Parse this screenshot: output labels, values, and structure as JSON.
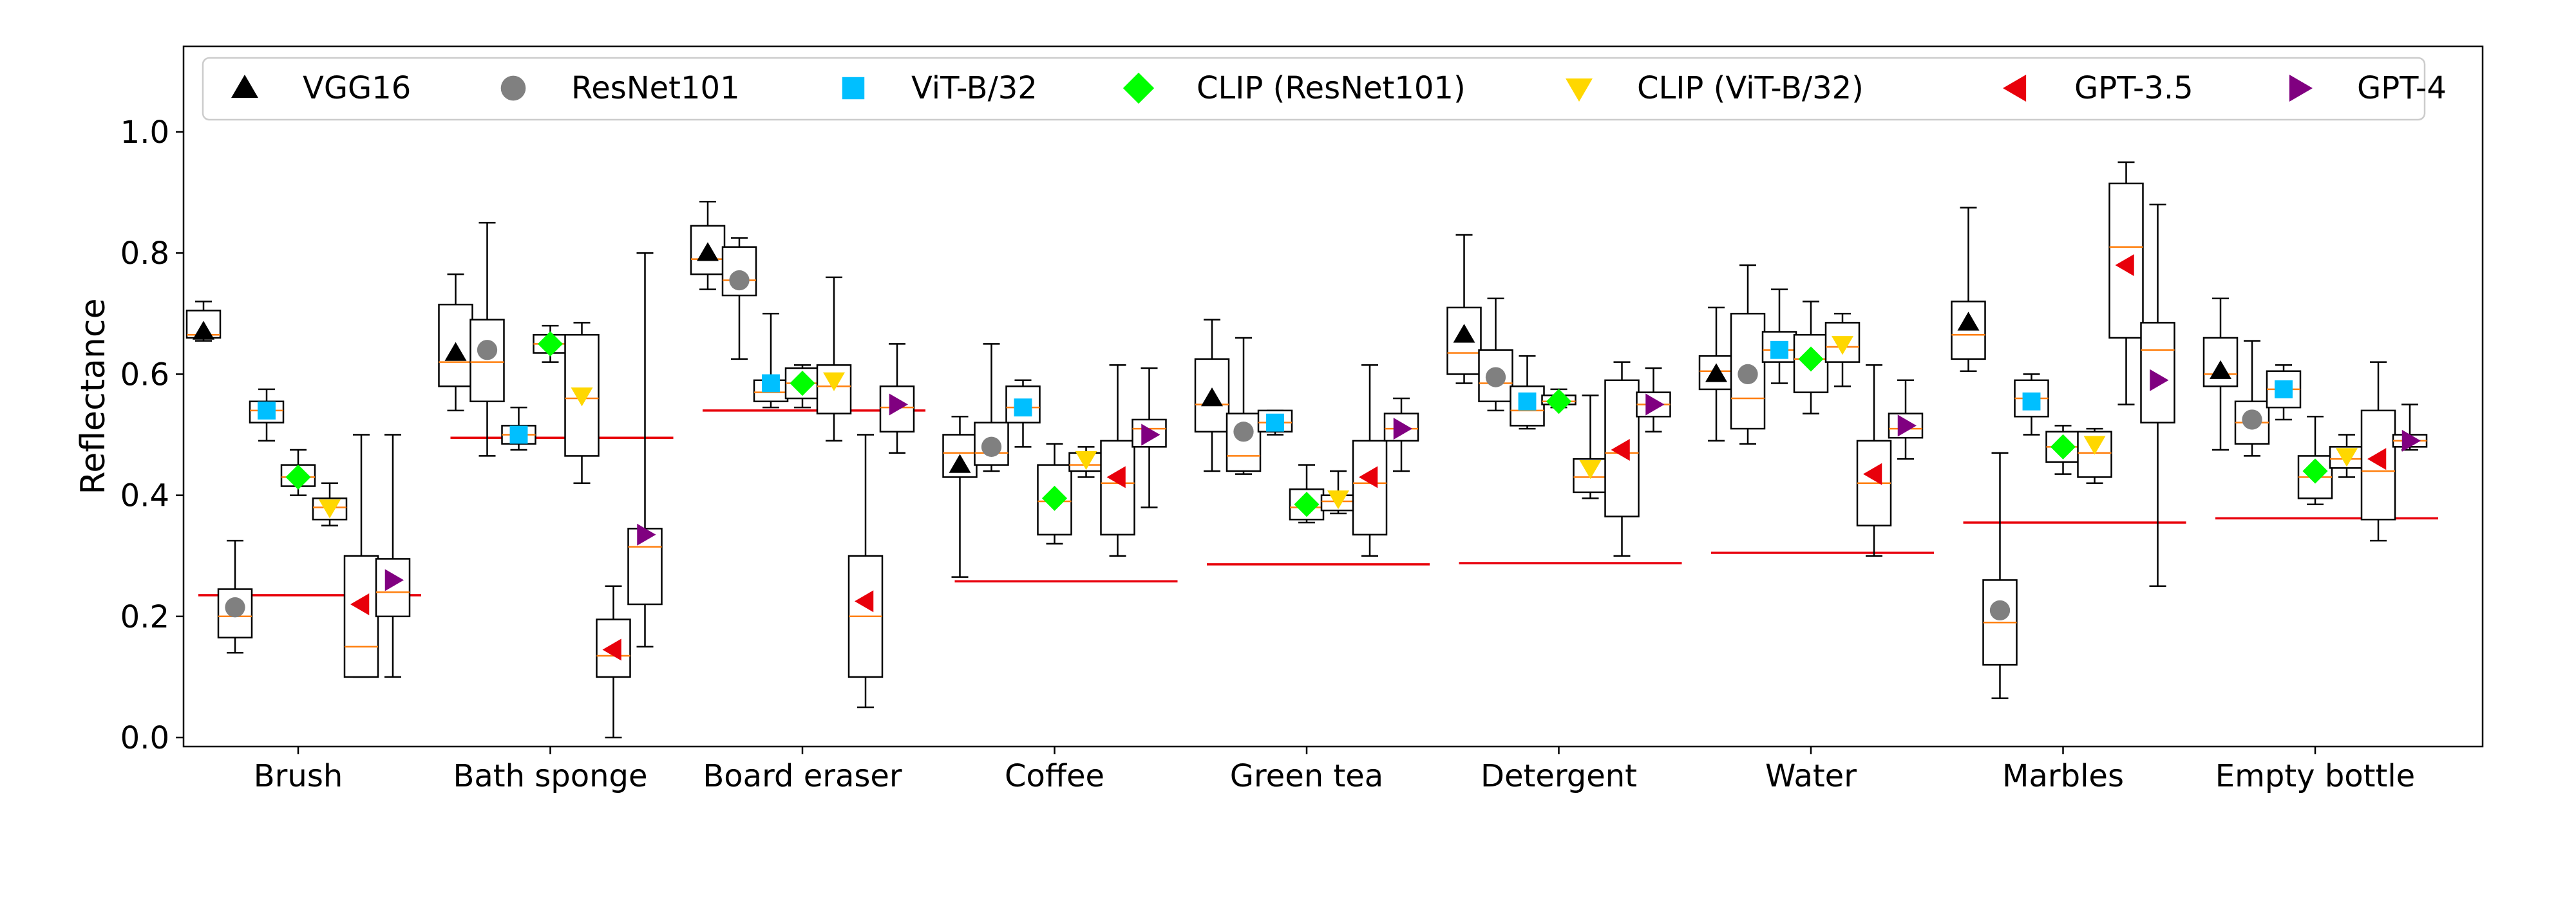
{
  "chart_data": {
    "type": "box",
    "title": "",
    "xlabel": "",
    "ylabel": "Reflectance",
    "ylim": [
      -0.01,
      1.14
    ],
    "yticks": [
      0.0,
      0.2,
      0.4,
      0.6,
      0.8,
      1.0
    ],
    "ytick_labels": [
      "0.0",
      "0.2",
      "0.4",
      "0.6",
      "0.8",
      "1.0"
    ],
    "grid": false,
    "legend_position": "top",
    "categories": [
      "Brush",
      "Bath sponge",
      "Board eraser",
      "Coffee",
      "Green tea",
      "Detergent",
      "Water",
      "Marbles",
      "Empty bottle"
    ],
    "reference": {
      "color": "#e8000b",
      "values": [
        0.235,
        0.495,
        0.54,
        0.258,
        0.286,
        0.288,
        0.305,
        0.355,
        0.362
      ]
    },
    "series": [
      {
        "name": "VGG16",
        "marker": "triangle-up",
        "color": "#000000",
        "values": [
          0.67,
          0.635,
          0.8,
          0.45,
          0.56,
          0.665,
          0.6,
          0.685,
          0.605
        ],
        "boxes": [
          [
            0.655,
            0.66,
            0.665,
            0.705,
            0.72
          ],
          [
            0.54,
            0.58,
            0.62,
            0.715,
            0.765
          ],
          [
            0.74,
            0.765,
            0.79,
            0.845,
            0.885
          ],
          [
            0.265,
            0.43,
            0.47,
            0.5,
            0.53
          ],
          [
            0.44,
            0.505,
            0.55,
            0.625,
            0.69
          ],
          [
            0.585,
            0.6,
            0.635,
            0.71,
            0.83
          ],
          [
            0.49,
            0.575,
            0.605,
            0.63,
            0.71
          ],
          [
            0.605,
            0.625,
            0.665,
            0.72,
            0.875
          ],
          [
            0.475,
            0.58,
            0.6,
            0.66,
            0.725
          ]
        ]
      },
      {
        "name": "ResNet101",
        "marker": "circle",
        "color": "#808080",
        "values": [
          0.215,
          0.64,
          0.755,
          0.48,
          0.505,
          0.595,
          0.6,
          0.21,
          0.525
        ],
        "boxes": [
          [
            0.14,
            0.165,
            0.2,
            0.245,
            0.325
          ],
          [
            0.465,
            0.555,
            0.62,
            0.69,
            0.85
          ],
          [
            0.625,
            0.73,
            0.755,
            0.81,
            0.825
          ],
          [
            0.44,
            0.45,
            0.47,
            0.52,
            0.65
          ],
          [
            0.435,
            0.44,
            0.465,
            0.535,
            0.66
          ],
          [
            0.54,
            0.555,
            0.585,
            0.64,
            0.725
          ],
          [
            0.485,
            0.51,
            0.56,
            0.7,
            0.78
          ],
          [
            0.065,
            0.12,
            0.19,
            0.26,
            0.47
          ],
          [
            0.465,
            0.485,
            0.52,
            0.555,
            0.655
          ]
        ]
      },
      {
        "name": "ViT-B/32",
        "marker": "square",
        "color": "#00bfff",
        "values": [
          0.54,
          0.5,
          0.585,
          0.545,
          0.52,
          0.555,
          0.64,
          0.555,
          0.575
        ],
        "boxes": [
          [
            0.49,
            0.52,
            0.54,
            0.555,
            0.575
          ],
          [
            0.475,
            0.485,
            0.5,
            0.515,
            0.545
          ],
          [
            0.545,
            0.555,
            0.57,
            0.59,
            0.7
          ],
          [
            0.48,
            0.52,
            0.545,
            0.58,
            0.59
          ],
          [
            0.5,
            0.505,
            0.52,
            0.54,
            0.54
          ],
          [
            0.51,
            0.515,
            0.54,
            0.58,
            0.63
          ],
          [
            0.585,
            0.62,
            0.64,
            0.67,
            0.74
          ],
          [
            0.5,
            0.53,
            0.56,
            0.59,
            0.6
          ],
          [
            0.525,
            0.545,
            0.575,
            0.605,
            0.615
          ]
        ]
      },
      {
        "name": "CLIP (ResNet101)",
        "marker": "diamond",
        "color": "#00ff00",
        "values": [
          0.43,
          0.65,
          0.585,
          0.395,
          0.385,
          0.555,
          0.625,
          0.48,
          0.44
        ],
        "boxes": [
          [
            0.4,
            0.415,
            0.43,
            0.45,
            0.475
          ],
          [
            0.62,
            0.635,
            0.65,
            0.665,
            0.68
          ],
          [
            0.545,
            0.56,
            0.585,
            0.61,
            0.615
          ],
          [
            0.32,
            0.335,
            0.39,
            0.45,
            0.485
          ],
          [
            0.355,
            0.36,
            0.38,
            0.41,
            0.45
          ],
          [
            0.545,
            0.55,
            0.555,
            0.565,
            0.575
          ],
          [
            0.535,
            0.57,
            0.625,
            0.665,
            0.72
          ],
          [
            0.435,
            0.455,
            0.48,
            0.505,
            0.515
          ],
          [
            0.385,
            0.395,
            0.43,
            0.465,
            0.53
          ]
        ]
      },
      {
        "name": "CLIP (ViT-B/32)",
        "marker": "triangle-down",
        "color": "#ffd700",
        "values": [
          0.38,
          0.565,
          0.59,
          0.46,
          0.395,
          0.445,
          0.65,
          0.485,
          0.465
        ],
        "boxes": [
          [
            0.35,
            0.36,
            0.38,
            0.395,
            0.42
          ],
          [
            0.42,
            0.465,
            0.56,
            0.665,
            0.685
          ],
          [
            0.49,
            0.535,
            0.58,
            0.615,
            0.76
          ],
          [
            0.43,
            0.44,
            0.45,
            0.47,
            0.48
          ],
          [
            0.37,
            0.375,
            0.39,
            0.4,
            0.44
          ],
          [
            0.395,
            0.405,
            0.43,
            0.46,
            0.565
          ],
          [
            0.58,
            0.62,
            0.645,
            0.685,
            0.7
          ],
          [
            0.42,
            0.43,
            0.47,
            0.505,
            0.51
          ],
          [
            0.43,
            0.445,
            0.46,
            0.48,
            0.5
          ]
        ]
      },
      {
        "name": "GPT-3.5",
        "marker": "triangle-left",
        "color": "#e8000b",
        "values": [
          0.22,
          0.145,
          0.225,
          0.43,
          0.43,
          0.475,
          0.435,
          0.78,
          0.46
        ],
        "boxes": [
          [
            0.1,
            0.1,
            0.15,
            0.3,
            0.5
          ],
          [
            0.0,
            0.1,
            0.135,
            0.195,
            0.25
          ],
          [
            0.05,
            0.1,
            0.2,
            0.3,
            0.5
          ],
          [
            0.3,
            0.335,
            0.42,
            0.49,
            0.615
          ],
          [
            0.3,
            0.335,
            0.42,
            0.49,
            0.615
          ],
          [
            0.3,
            0.365,
            0.47,
            0.59,
            0.62
          ],
          [
            0.3,
            0.35,
            0.42,
            0.49,
            0.615
          ],
          [
            0.55,
            0.66,
            0.81,
            0.915,
            0.95
          ],
          [
            0.325,
            0.36,
            0.44,
            0.54,
            0.62
          ]
        ]
      },
      {
        "name": "GPT-4",
        "marker": "triangle-right",
        "color": "#800080",
        "values": [
          0.26,
          0.335,
          0.55,
          0.5,
          0.51,
          0.55,
          0.515,
          0.59,
          0.49
        ],
        "boxes": [
          [
            0.1,
            0.2,
            0.24,
            0.295,
            0.5
          ],
          [
            0.15,
            0.22,
            0.315,
            0.345,
            0.8
          ],
          [
            0.47,
            0.505,
            0.545,
            0.58,
            0.65
          ],
          [
            0.38,
            0.48,
            0.51,
            0.525,
            0.61
          ],
          [
            0.44,
            0.49,
            0.51,
            0.535,
            0.56
          ],
          [
            0.505,
            0.53,
            0.55,
            0.57,
            0.61
          ],
          [
            0.46,
            0.495,
            0.51,
            0.535,
            0.59
          ],
          [
            0.25,
            0.52,
            0.64,
            0.685,
            0.88
          ],
          [
            0.475,
            0.48,
            0.49,
            0.5,
            0.55
          ]
        ]
      }
    ]
  }
}
